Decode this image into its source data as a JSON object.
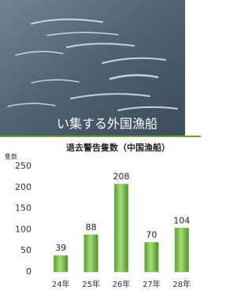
{
  "photo": {
    "caption": "い集する外国漁船"
  },
  "chart_data": {
    "type": "bar",
    "title": "退去警告隻数（中国漁船）",
    "y_label": "隻数",
    "categories": [
      "24年",
      "25年",
      "26年",
      "27年",
      "28年"
    ],
    "values": [
      39,
      88,
      208,
      70,
      104
    ],
    "color": "#7cc04a",
    "ylim": [
      0,
      250
    ],
    "yticks": [
      0,
      50,
      100,
      150,
      200,
      250
    ],
    "grid": false
  }
}
